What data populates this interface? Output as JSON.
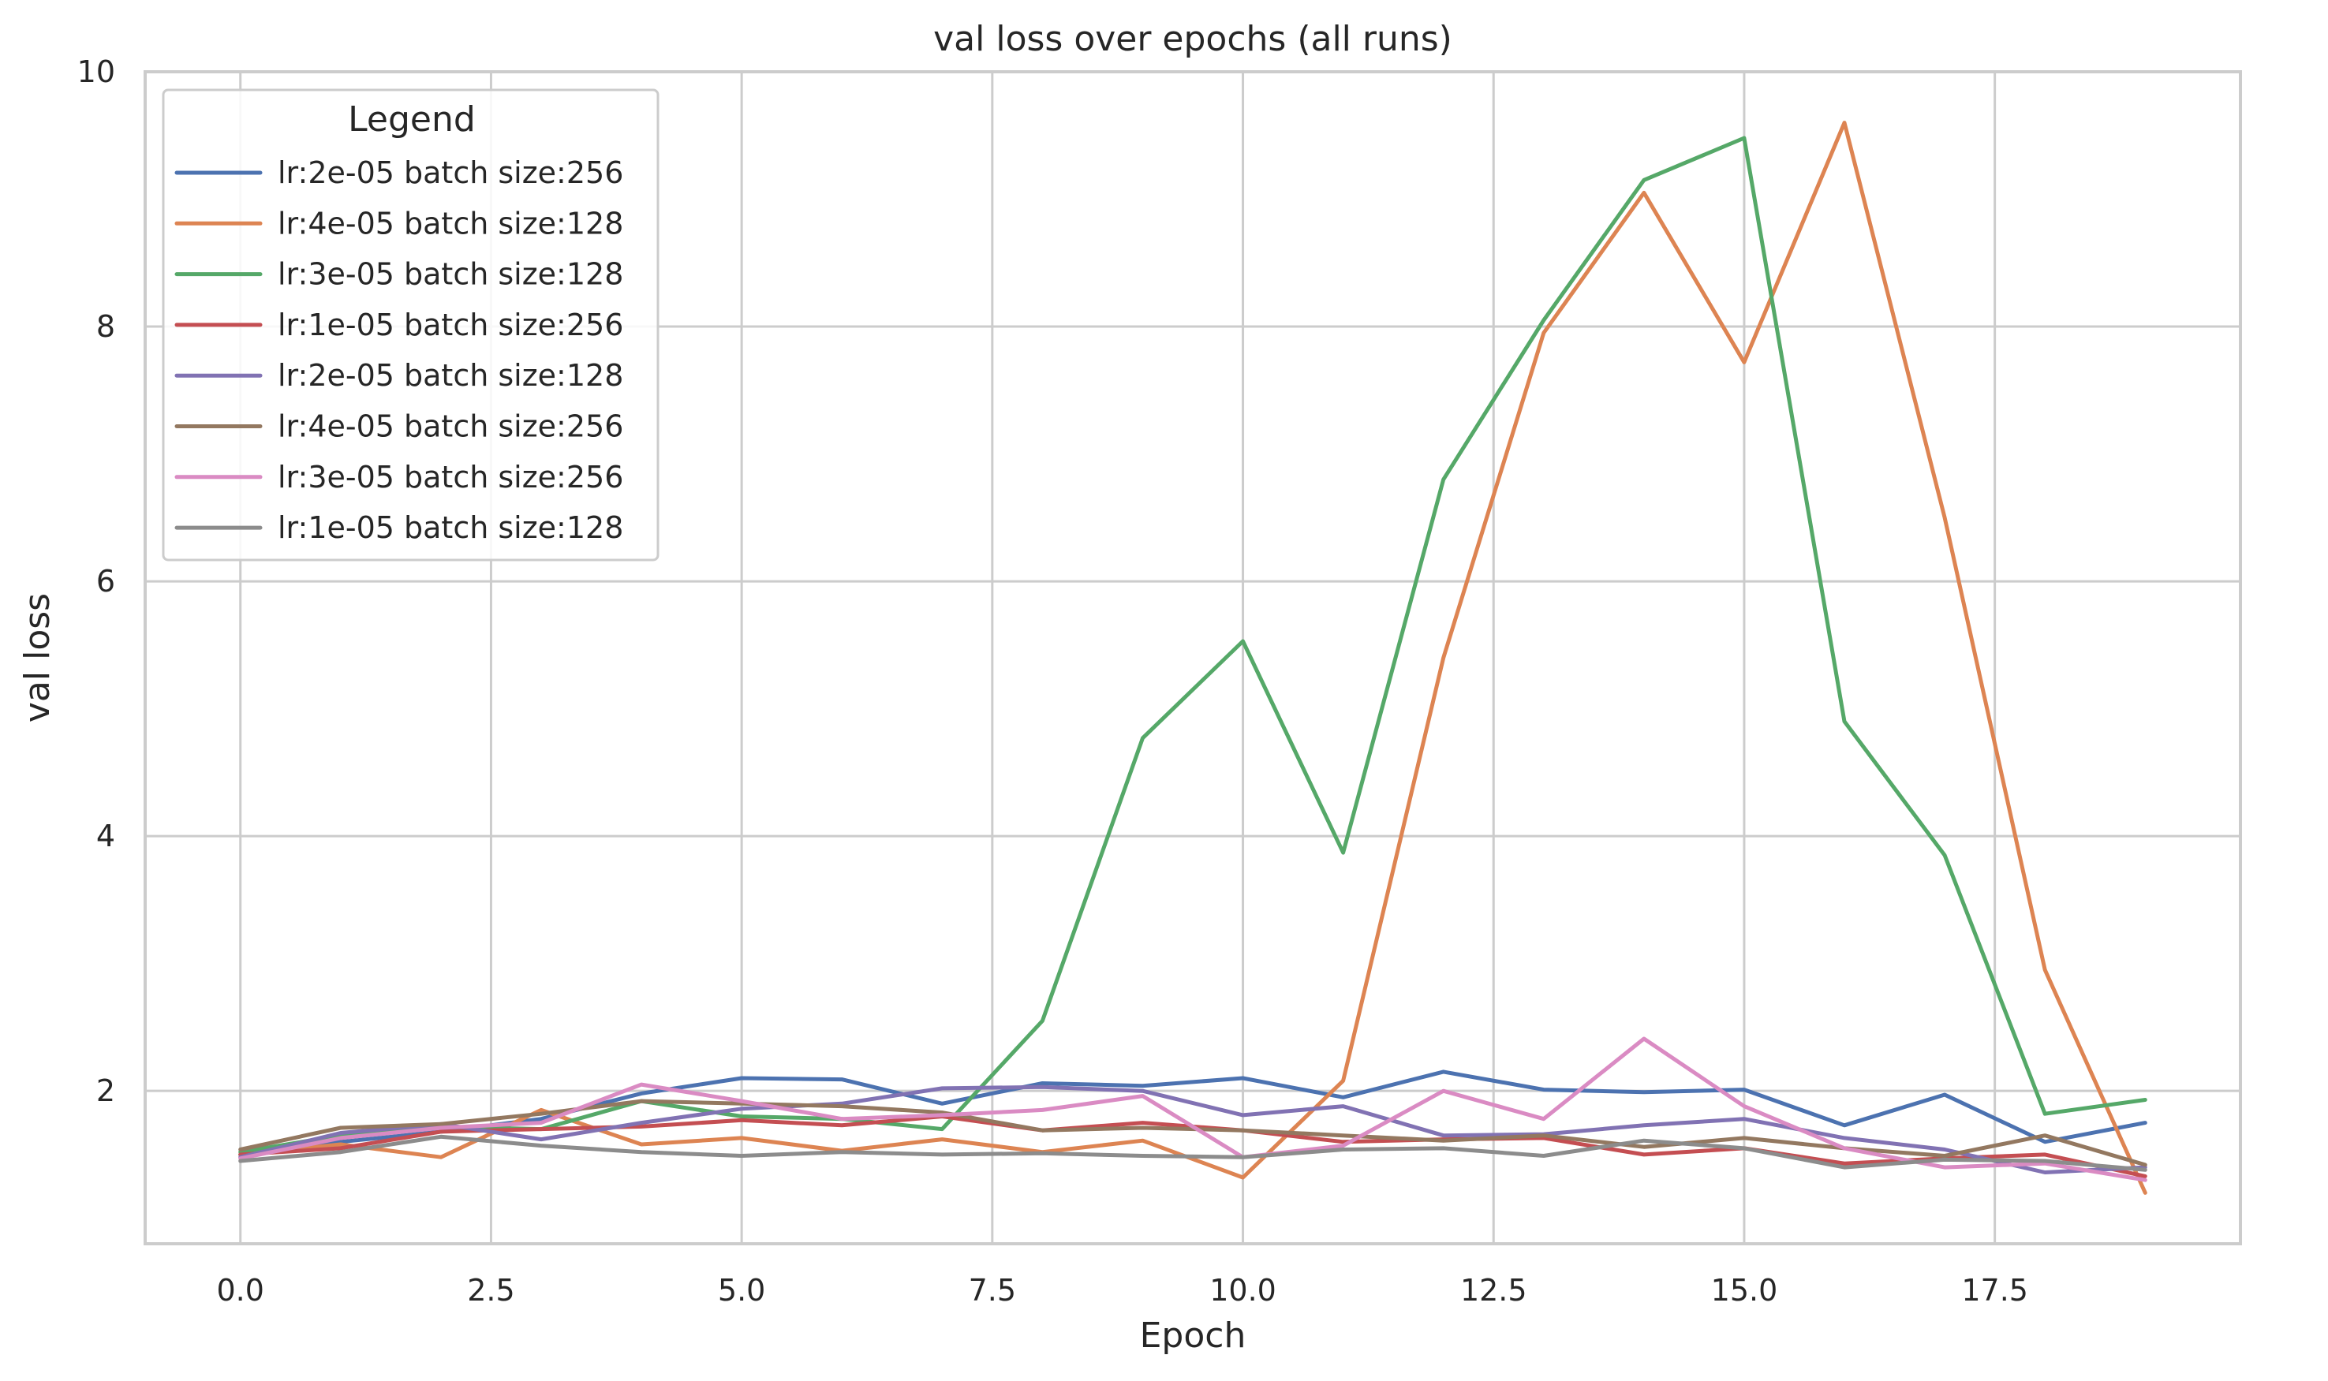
{
  "chart_data": {
    "type": "line",
    "title": "val loss over epochs (all runs)",
    "xlabel": "Epoch",
    "ylabel": "val loss",
    "xlim": [
      -0.95,
      19.95
    ],
    "ylim": [
      0.8,
      10
    ],
    "xticks": [
      "0.0",
      "2.5",
      "5.0",
      "7.5",
      "10.0",
      "12.5",
      "15.0",
      "17.5"
    ],
    "yticks": [
      "2",
      "4",
      "6",
      "8",
      "10"
    ],
    "grid": true,
    "legend": {
      "title": "Legend",
      "placement": "top-left"
    },
    "x": [
      0,
      1,
      2,
      3,
      4,
      5,
      6,
      7,
      8,
      9,
      10,
      11,
      12,
      13,
      14,
      15,
      16,
      17,
      18,
      19
    ],
    "series": [
      {
        "name": "lr:2e-05 batch size:256",
        "color": "#4c72b0",
        "values": [
          1.5,
          1.6,
          1.68,
          1.78,
          1.98,
          2.1,
          2.09,
          1.9,
          2.06,
          2.04,
          2.1,
          1.95,
          2.15,
          2.01,
          1.99,
          2.01,
          1.73,
          1.97,
          1.6,
          1.75
        ]
      },
      {
        "name": "lr:4e-05 batch size:128",
        "color": "#dd8452",
        "values": [
          1.5,
          1.58,
          1.48,
          1.85,
          1.58,
          1.63,
          1.53,
          1.62,
          1.52,
          1.61,
          1.32,
          2.08,
          5.4,
          7.95,
          9.05,
          7.72,
          9.6,
          6.5,
          2.95,
          1.2
        ]
      },
      {
        "name": "lr:3e-05 batch size:128",
        "color": "#55a868",
        "values": [
          1.52,
          1.65,
          1.72,
          1.7,
          1.92,
          1.8,
          1.78,
          1.7,
          2.55,
          4.77,
          5.53,
          3.87,
          6.8,
          8.05,
          9.15,
          9.48,
          4.9,
          3.85,
          1.82,
          1.93
        ]
      },
      {
        "name": "lr:1e-05 batch size:256",
        "color": "#c44e52",
        "values": [
          1.5,
          1.55,
          1.68,
          1.7,
          1.72,
          1.77,
          1.73,
          1.8,
          1.69,
          1.75,
          1.69,
          1.6,
          1.62,
          1.63,
          1.5,
          1.55,
          1.43,
          1.47,
          1.5,
          1.33
        ]
      },
      {
        "name": "lr:2e-05 batch size:128",
        "color": "#8172b3",
        "values": [
          1.48,
          1.67,
          1.74,
          1.62,
          1.75,
          1.86,
          1.9,
          2.02,
          2.03,
          2.0,
          1.81,
          1.88,
          1.65,
          1.66,
          1.73,
          1.78,
          1.63,
          1.54,
          1.36,
          1.4
        ]
      },
      {
        "name": "lr:4e-05 batch size:256",
        "color": "#937860",
        "values": [
          1.54,
          1.71,
          1.74,
          1.82,
          1.92,
          1.9,
          1.88,
          1.83,
          1.69,
          1.71,
          1.69,
          1.65,
          1.61,
          1.65,
          1.56,
          1.63,
          1.55,
          1.49,
          1.65,
          1.42
        ]
      },
      {
        "name": "lr:3e-05 batch size:256",
        "color": "#da8bc3",
        "values": [
          1.47,
          1.63,
          1.71,
          1.75,
          2.05,
          1.92,
          1.78,
          1.81,
          1.85,
          1.96,
          1.48,
          1.57,
          2.0,
          1.78,
          2.41,
          1.88,
          1.55,
          1.4,
          1.43,
          1.3
        ]
      },
      {
        "name": "lr:1e-05 batch size:128",
        "color": "#8c8c8c",
        "values": [
          1.45,
          1.52,
          1.64,
          1.57,
          1.52,
          1.49,
          1.52,
          1.5,
          1.51,
          1.49,
          1.48,
          1.54,
          1.55,
          1.49,
          1.61,
          1.55,
          1.4,
          1.46,
          1.45,
          1.38
        ]
      }
    ]
  }
}
